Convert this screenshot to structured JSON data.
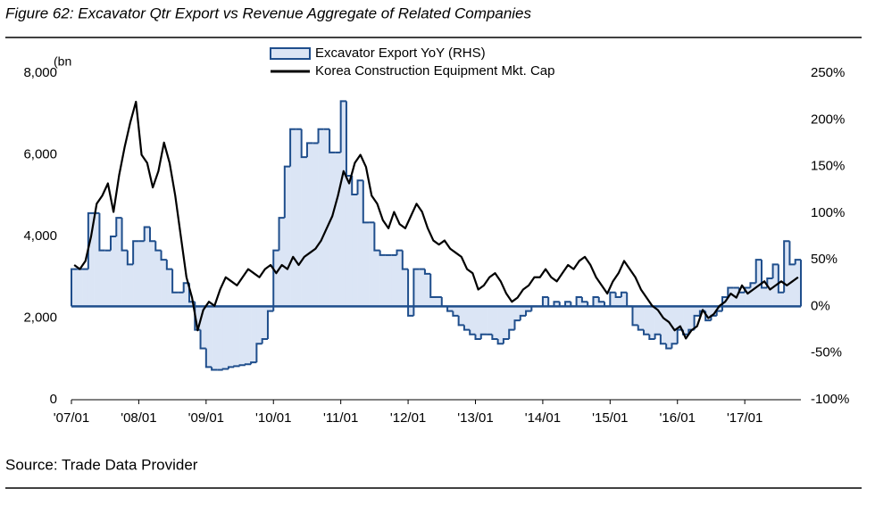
{
  "chart_data": {
    "type": "step-area-line",
    "title": "Figure 62: Excavator Qtr Export vs Revenue Aggregate of Related Companies",
    "y_label": "(bn",
    "source": "Source: Trade Data Provider",
    "xlim": [
      "2007-01",
      "2017-11"
    ],
    "xticks": [
      {
        "value": "2007-01",
        "label": "'07/01"
      },
      {
        "value": "2008-01",
        "label": "'08/01"
      },
      {
        "value": "2009-01",
        "label": "'09/01"
      },
      {
        "value": "2010-01",
        "label": "'10/01"
      },
      {
        "value": "2011-01",
        "label": "'11/01"
      },
      {
        "value": "2012-01",
        "label": "'12/01"
      },
      {
        "value": "2013-01",
        "label": "'13/01"
      },
      {
        "value": "2014-01",
        "label": "'14/01"
      },
      {
        "value": "2015-01",
        "label": "'15/01"
      },
      {
        "value": "2016-01",
        "label": "'16/01"
      },
      {
        "value": "2017-01",
        "label": "'17/01"
      }
    ],
    "ylim": [
      0,
      8000
    ],
    "yticks": [
      0,
      {
        "value": 2000,
        "label": "2,000"
      },
      {
        "value": 4000,
        "label": "4,000"
      },
      {
        "value": 6000,
        "label": "6,000"
      },
      {
        "value": 8000,
        "label": "8,000"
      }
    ],
    "y2lim": [
      -100,
      250
    ],
    "y2ticks": [
      {
        "value": -100,
        "label": "-100%"
      },
      {
        "value": -50,
        "label": "-50%"
      },
      {
        "value": 0,
        "label": "0%"
      },
      {
        "value": 50,
        "label": "50%"
      },
      {
        "value": 100,
        "label": "100%"
      },
      {
        "value": 150,
        "label": "150%"
      },
      {
        "value": 200,
        "label": "200%"
      },
      {
        "value": 250,
        "label": "250%"
      }
    ],
    "start": "2007-01",
    "series": [
      {
        "name": "Excavator Export YoY (RHS)",
        "axis": "y2",
        "kind": "step",
        "color": "#dbe5f5",
        "edge_color": "#1f4e8c",
        "values": [
          40,
          40,
          40,
          100,
          100,
          60,
          60,
          75,
          95,
          60,
          45,
          70,
          70,
          85,
          70,
          60,
          50,
          40,
          15,
          15,
          25,
          5,
          -25,
          -45,
          -65,
          -68,
          -68,
          -67,
          -65,
          -64,
          -63,
          -62,
          -60,
          -40,
          -35,
          -5,
          60,
          95,
          150,
          190,
          190,
          160,
          175,
          175,
          190,
          190,
          165,
          165,
          220,
          140,
          120,
          135,
          90,
          90,
          60,
          55,
          55,
          55,
          60,
          40,
          -10,
          40,
          40,
          35,
          10,
          10,
          0,
          -5,
          -10,
          -20,
          -25,
          -30,
          -35,
          -30,
          -30,
          -35,
          -40,
          -35,
          -25,
          -15,
          -10,
          -5,
          0,
          0,
          10,
          0,
          5,
          0,
          5,
          0,
          10,
          5,
          0,
          10,
          5,
          0,
          15,
          10,
          15,
          0,
          -20,
          -25,
          -30,
          -35,
          -30,
          -40,
          -45,
          -40,
          -25,
          -30,
          -25,
          -10,
          -5,
          -15,
          -10,
          -5,
          10,
          20,
          20,
          15,
          20,
          25,
          50,
          20,
          30,
          45,
          15,
          70,
          45,
          50
        ]
      },
      {
        "name": "Korea Construction Equipment Mkt. Cap",
        "axis": "y",
        "kind": "line",
        "color": "#000000",
        "values": [
          3300,
          3200,
          3400,
          4000,
          4800,
          5000,
          5300,
          4600,
          5500,
          6200,
          6800,
          7300,
          6000,
          5800,
          5200,
          5600,
          6300,
          5800,
          5000,
          4000,
          3000,
          2500,
          1700,
          2200,
          2400,
          2300,
          2700,
          3000,
          2900,
          2800,
          3000,
          3200,
          3100,
          3000,
          3200,
          3300,
          3100,
          3300,
          3200,
          3500,
          3300,
          3500,
          3600,
          3700,
          3900,
          4200,
          4500,
          5000,
          5600,
          5300,
          5800,
          6000,
          5700,
          5000,
          4800,
          4400,
          4200,
          4600,
          4300,
          4200,
          4500,
          4800,
          4600,
          4200,
          3900,
          3800,
          3900,
          3700,
          3600,
          3500,
          3200,
          3100,
          2700,
          2800,
          3000,
          3100,
          2900,
          2600,
          2400,
          2500,
          2700,
          2800,
          3000,
          3000,
          3200,
          3000,
          2900,
          3100,
          3300,
          3200,
          3400,
          3500,
          3300,
          3000,
          2800,
          2600,
          2900,
          3100,
          3400,
          3200,
          3000,
          2700,
          2500,
          2300,
          2200,
          2000,
          1900,
          1700,
          1800,
          1500,
          1700,
          1800,
          2200,
          2000,
          2100,
          2300,
          2400,
          2600,
          2500,
          2800,
          2600,
          2700,
          2800,
          2900,
          2700,
          2800,
          2900,
          2800,
          2900,
          3000
        ]
      }
    ]
  }
}
